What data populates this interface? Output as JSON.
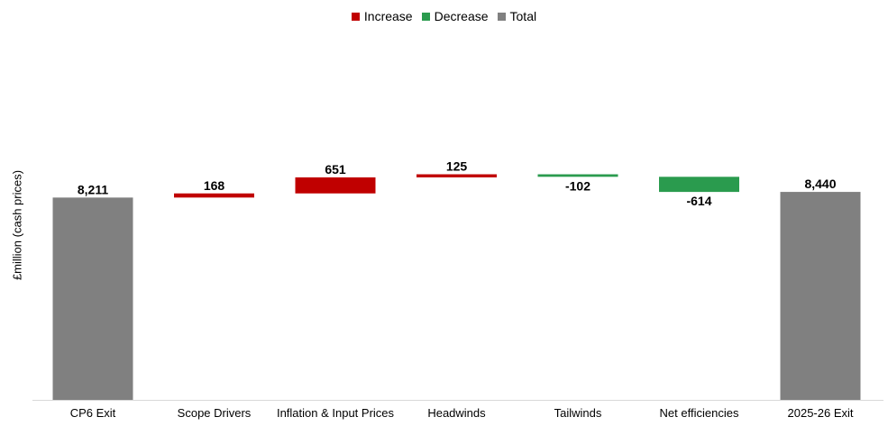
{
  "chart_data": {
    "type": "waterfall",
    "categories": [
      "CP6 Exit",
      "Scope Drivers",
      "Inflation & Input Prices",
      "Headwinds",
      "Tailwinds",
      "Net efficiencies",
      "2025-26 Exit"
    ],
    "values": [
      8211,
      168,
      651,
      125,
      -102,
      -614,
      8440
    ],
    "kinds": [
      "total",
      "increase",
      "increase",
      "increase",
      "decrease",
      "decrease",
      "total"
    ],
    "data_labels": [
      "8,211",
      "168",
      "651",
      "125",
      "-102",
      "-614",
      "8,440"
    ],
    "ylabel": "£million (cash prices)",
    "legend": [
      {
        "name": "Increase",
        "color": "#c00000"
      },
      {
        "name": "Decrease",
        "color": "#2a9b4e"
      },
      {
        "name": "Total",
        "color": "#808080"
      }
    ],
    "legend_position": "top-center",
    "colors": {
      "increase": "#c00000",
      "decrease": "#2a9b4e",
      "total": "#808080"
    },
    "grid": false
  }
}
